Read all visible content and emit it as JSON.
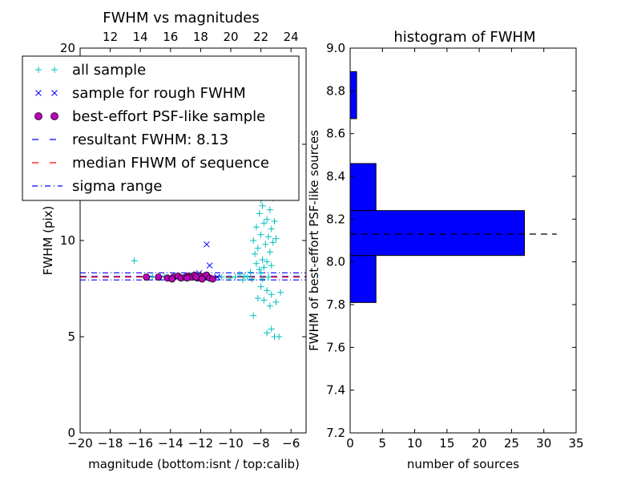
{
  "chart_data": [
    {
      "type": "scatter",
      "title": "FWHM vs magnitudes",
      "xlabel": "magnitude (bottom:isnt / top:calib)",
      "ylabel": "FWHM (pix)",
      "xlim": [
        -20,
        -5
      ],
      "ylim": [
        0,
        20
      ],
      "xticks": [
        "−20",
        "−18",
        "−16",
        "−14",
        "−12",
        "−10",
        "−8",
        "−6"
      ],
      "xtick_values": [
        -20,
        -18,
        -16,
        -14,
        -12,
        -10,
        -8,
        -6
      ],
      "yticks": [
        "0",
        "5",
        "10",
        "15",
        "20"
      ],
      "ytick_values": [
        0,
        5,
        10,
        15,
        20
      ],
      "top_xlim": [
        10,
        25
      ],
      "top_xticks": [
        "12",
        "14",
        "16",
        "18",
        "20",
        "22",
        "24"
      ],
      "top_xtick_values": [
        12,
        14,
        16,
        18,
        20,
        22,
        24
      ],
      "grid": false,
      "legend_position": "top-left",
      "legend": [
        {
          "label": "all sample",
          "marker": "plus",
          "color": "#00bfbf"
        },
        {
          "label": "sample for rough FWHM",
          "marker": "cross",
          "color": "#0000ff"
        },
        {
          "label": "best-effort PSF-like sample",
          "marker": "circle",
          "color": "#bf00bf"
        },
        {
          "label": "resultant FWHM: 8.13",
          "marker": "dashed",
          "color": "#0000ff"
        },
        {
          "label": "median FHWM of sequence",
          "marker": "dashed",
          "color": "#ff0000"
        },
        {
          "label": "sigma range",
          "marker": "dashdot",
          "color": "#0000ff"
        }
      ],
      "resultant_fwhm": 8.13,
      "median_fwhm": 8.1,
      "sigma_range": [
        7.95,
        8.32
      ],
      "series": [
        {
          "name": "all sample",
          "points": [
            [
              -16.4,
              8.95
            ],
            [
              -15.2,
              8.1
            ],
            [
              -14.4,
              8.1
            ],
            [
              -13.1,
              8.05
            ],
            [
              -12.6,
              8.2
            ],
            [
              -11.9,
              8.1
            ],
            [
              -11.2,
              8.0
            ],
            [
              -10.6,
              8.1
            ],
            [
              -10.1,
              8.05
            ],
            [
              -9.7,
              8.1
            ],
            [
              -9.4,
              8.25
            ],
            [
              -9.2,
              7.95
            ],
            [
              -9.1,
              8.15
            ],
            [
              -8.9,
              8.1
            ],
            [
              -8.7,
              8.35
            ],
            [
              -8.6,
              8.0
            ],
            [
              -8.5,
              10.0
            ],
            [
              -8.4,
              9.3
            ],
            [
              -8.3,
              8.8
            ],
            [
              -8.3,
              10.7
            ],
            [
              -8.2,
              12.6
            ],
            [
              -8.2,
              9.6
            ],
            [
              -8.1,
              11.4
            ],
            [
              -8.1,
              8.5
            ],
            [
              -8.0,
              10.3
            ],
            [
              -8.0,
              12.1
            ],
            [
              -7.9,
              9.0
            ],
            [
              -7.9,
              11.8
            ],
            [
              -7.8,
              10.9
            ],
            [
              -7.8,
              8.6
            ],
            [
              -7.7,
              12.4
            ],
            [
              -7.7,
              9.8
            ],
            [
              -7.6,
              11.1
            ],
            [
              -7.6,
              8.9
            ],
            [
              -7.5,
              10.2
            ],
            [
              -7.5,
              12.7
            ],
            [
              -7.4,
              9.4
            ],
            [
              -7.4,
              11.6
            ],
            [
              -7.3,
              10.6
            ],
            [
              -7.3,
              8.7
            ],
            [
              -7.2,
              12.2
            ],
            [
              -7.2,
              9.9
            ],
            [
              -7.1,
              11.0
            ],
            [
              -7.0,
              10.1
            ],
            [
              -7.6,
              7.4
            ],
            [
              -7.8,
              6.9
            ],
            [
              -8.0,
              7.6
            ],
            [
              -7.4,
              6.6
            ],
            [
              -7.3,
              7.2
            ],
            [
              -8.5,
              6.1
            ],
            [
              -7.6,
              5.2
            ],
            [
              -7.3,
              5.4
            ],
            [
              -7.1,
              5.0
            ],
            [
              -6.8,
              5.0
            ],
            [
              -7.0,
              6.8
            ],
            [
              -8.2,
              7.0
            ],
            [
              -6.7,
              7.3
            ],
            [
              -7.9,
              8.0
            ],
            [
              -8.0,
              8.3
            ],
            [
              -7.5,
              8.1
            ]
          ]
        },
        {
          "name": "sample for rough FWHM",
          "points": [
            [
              -11.6,
              9.8
            ],
            [
              -11.4,
              8.7
            ],
            [
              -12.1,
              8.3
            ],
            [
              -10.9,
              8.1
            ]
          ]
        },
        {
          "name": "best-effort PSF-like sample",
          "points": [
            [
              -15.6,
              8.1
            ],
            [
              -14.8,
              8.1
            ],
            [
              -14.2,
              8.05
            ],
            [
              -13.8,
              8.1
            ],
            [
              -13.5,
              8.15
            ],
            [
              -13.3,
              8.05
            ],
            [
              -13.0,
              8.1
            ],
            [
              -12.8,
              8.15
            ],
            [
              -12.6,
              8.1
            ],
            [
              -12.4,
              8.2
            ],
            [
              -12.2,
              8.05
            ],
            [
              -12.0,
              8.15
            ],
            [
              -11.8,
              8.1
            ],
            [
              -11.6,
              8.2
            ],
            [
              -11.4,
              8.05
            ],
            [
              -11.2,
              8.0
            ],
            [
              -13.9,
              8.0
            ],
            [
              -12.9,
              8.05
            ],
            [
              -12.3,
              8.1
            ],
            [
              -11.9,
              8.0
            ]
          ]
        }
      ]
    },
    {
      "type": "bar",
      "orientation": "horizontal",
      "title": "histogram of FWHM",
      "xlabel": "number of sources",
      "ylabel": "FWHM of best-effort PSF-like sources",
      "xlim": [
        0,
        35
      ],
      "ylim": [
        7.2,
        9.0
      ],
      "xticks": [
        "0",
        "5",
        "10",
        "15",
        "20",
        "25",
        "30",
        "35"
      ],
      "xtick_values": [
        0,
        5,
        10,
        15,
        20,
        25,
        30,
        35
      ],
      "yticks": [
        "7.2",
        "7.4",
        "7.6",
        "7.8",
        "8.0",
        "8.2",
        "8.4",
        "8.6",
        "8.8",
        "9.0"
      ],
      "ytick_values": [
        7.2,
        7.4,
        7.6,
        7.8,
        8.0,
        8.2,
        8.4,
        8.6,
        8.8,
        9.0
      ],
      "bar_color": "#0000ff",
      "bins": [
        {
          "low": 7.81,
          "high": 8.03,
          "count": 4
        },
        {
          "low": 8.03,
          "high": 8.24,
          "count": 27
        },
        {
          "low": 8.24,
          "high": 8.46,
          "count": 4
        },
        {
          "low": 8.46,
          "high": 8.67,
          "count": 0
        },
        {
          "low": 8.67,
          "high": 8.89,
          "count": 1
        }
      ],
      "reference_line": {
        "y": 8.13,
        "x_range": [
          0,
          32
        ],
        "style": "dashed",
        "color": "#000000"
      }
    }
  ]
}
